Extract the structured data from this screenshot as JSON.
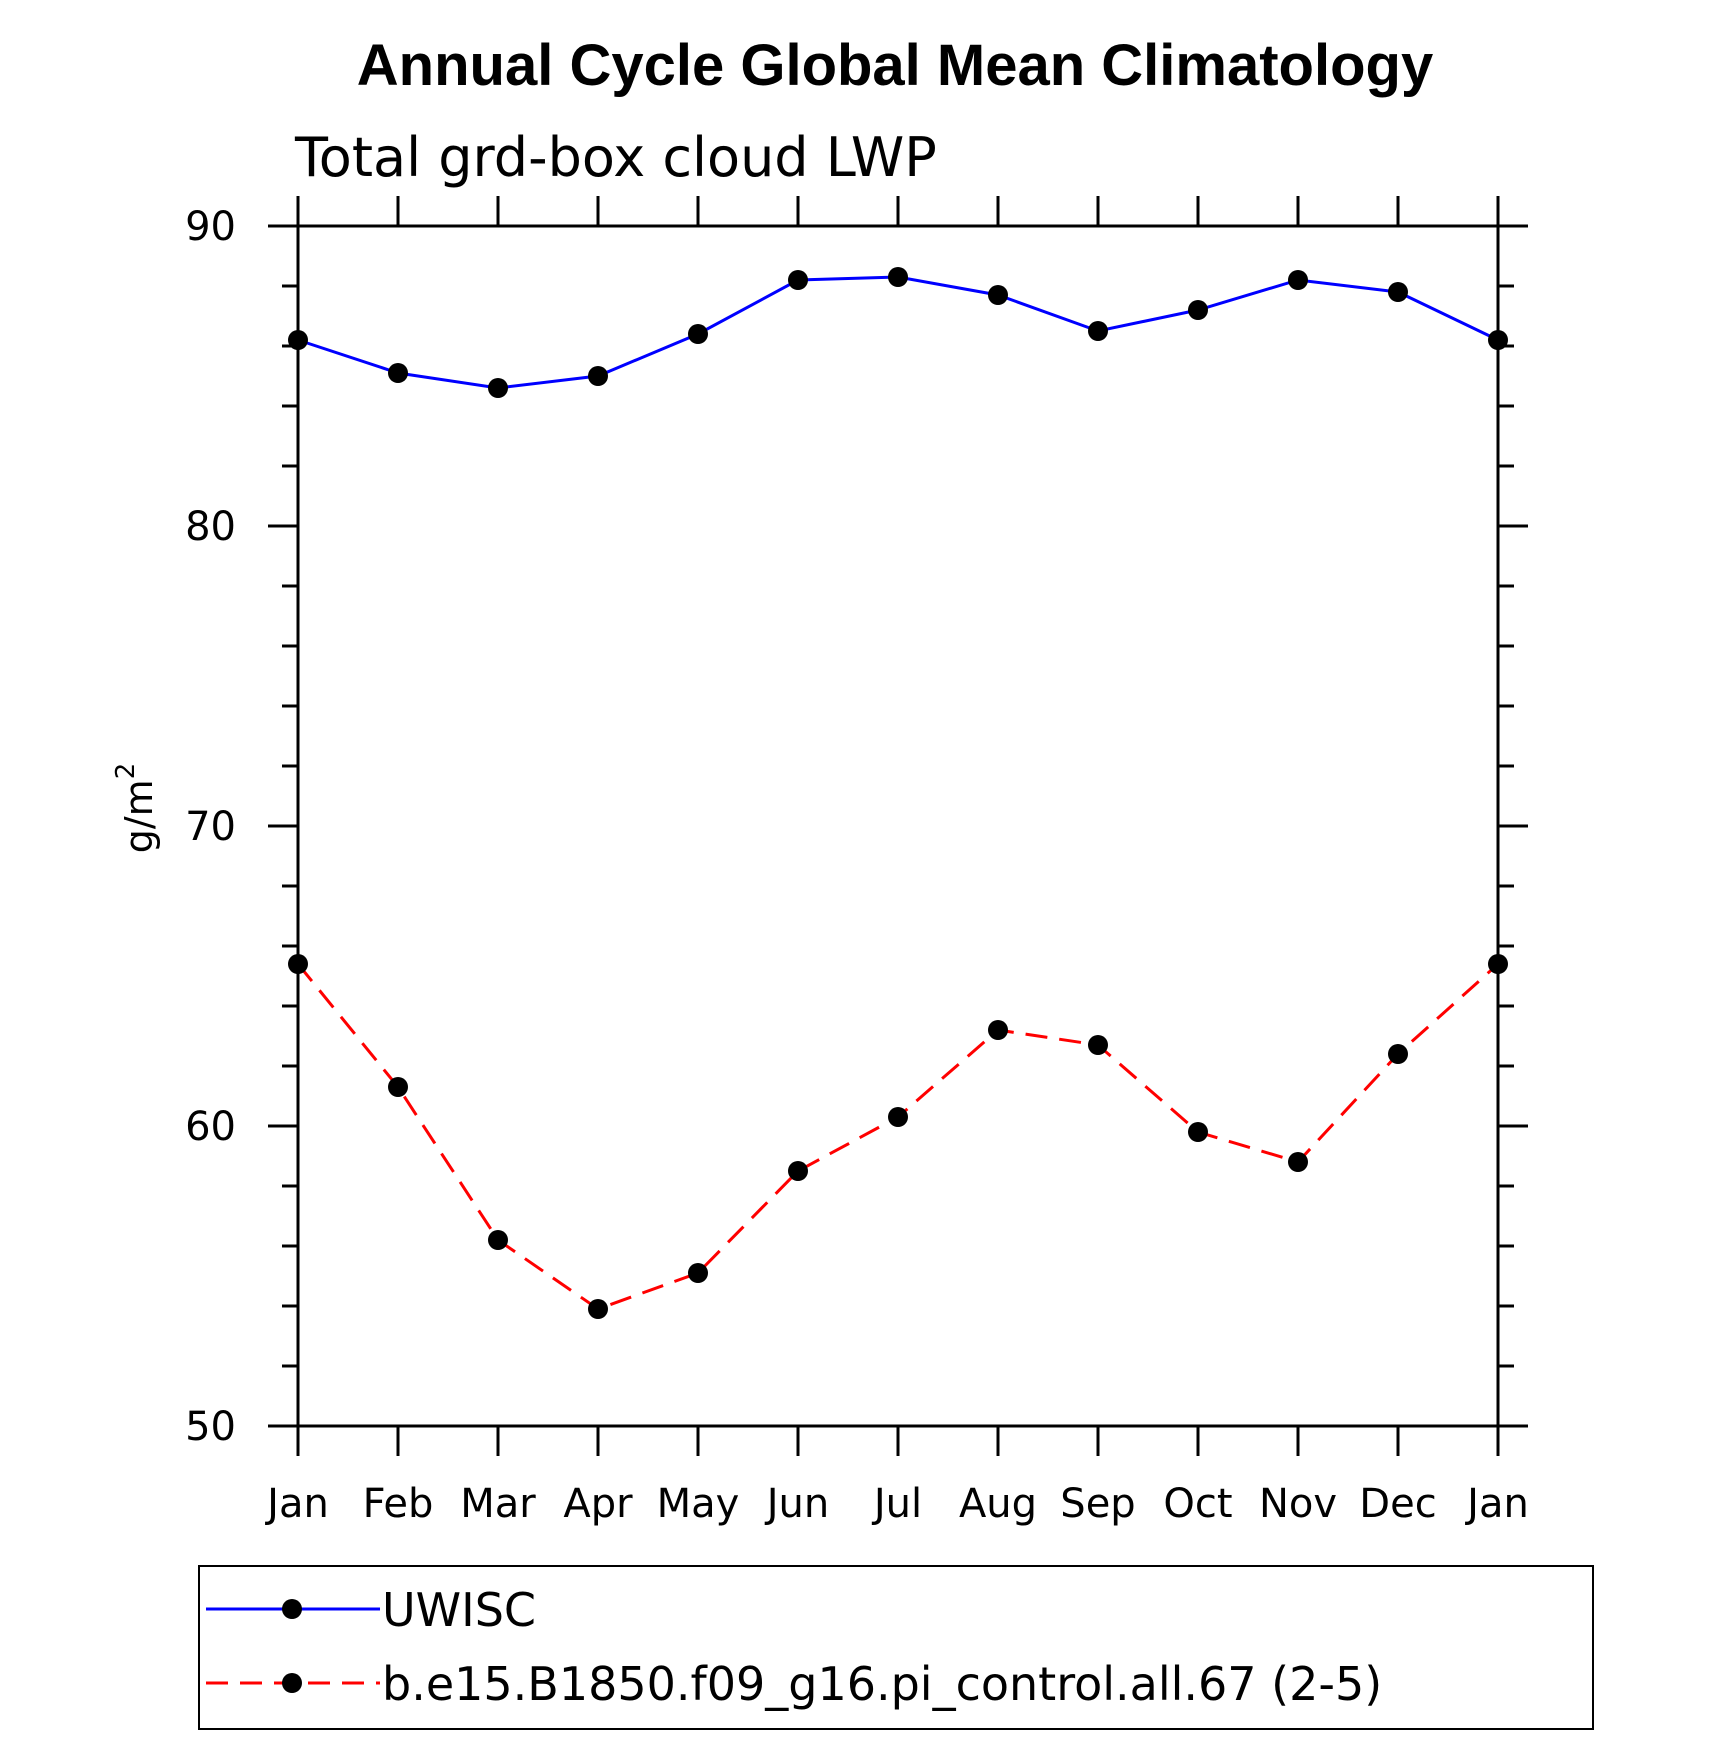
{
  "chart_data": {
    "type": "line",
    "title": "Annual Cycle Global Mean Climatology",
    "subtitle": "Total grd-box cloud LWP",
    "ylabel": "g/m",
    "ylabel_superscript": "2",
    "xlabel": "",
    "categories": [
      "Jan",
      "Feb",
      "Mar",
      "Apr",
      "May",
      "Jun",
      "Jul",
      "Aug",
      "Sep",
      "Oct",
      "Nov",
      "Dec",
      "Jan"
    ],
    "ylim": [
      50,
      90
    ],
    "yticks": [
      50,
      60,
      70,
      80,
      90
    ],
    "grid": false,
    "legend_position": "bottom",
    "series": [
      {
        "name": "UWISC",
        "color": "#0000ff",
        "style": "solid",
        "marker": "circle",
        "values": [
          86.2,
          85.1,
          84.6,
          85.0,
          86.4,
          88.2,
          88.3,
          87.7,
          86.5,
          87.2,
          88.2,
          87.8,
          86.2
        ]
      },
      {
        "name": "b.e15.B1850.f09_g16.pi_control.all.67 (2-5)",
        "color": "#ff0000",
        "style": "dashed",
        "marker": "circle",
        "values": [
          65.4,
          61.3,
          56.2,
          53.9,
          55.1,
          58.5,
          60.3,
          63.2,
          62.7,
          59.8,
          58.8,
          62.4,
          65.4
        ]
      }
    ]
  }
}
